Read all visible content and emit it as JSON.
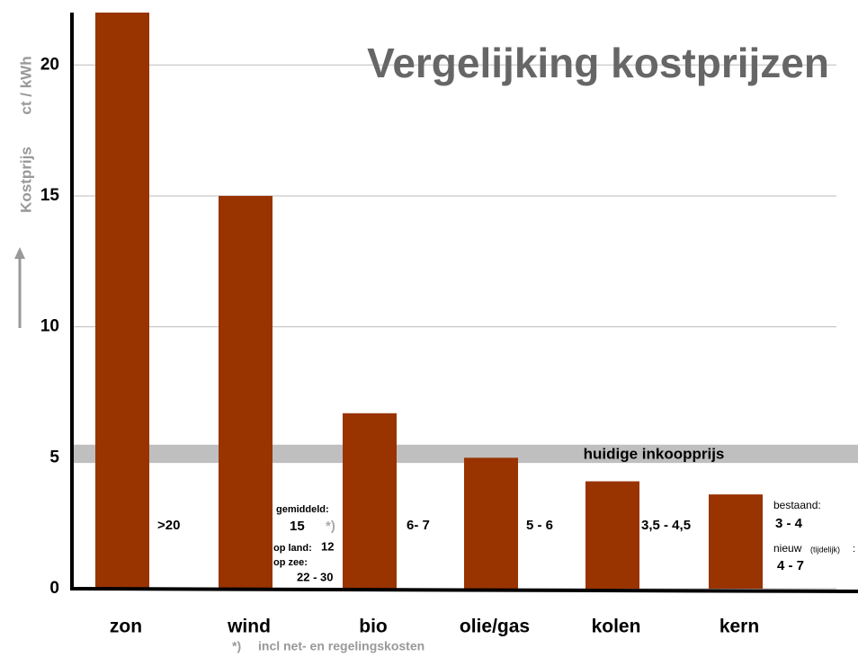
{
  "chart_data": {
    "type": "bar",
    "title": "Vergelijking kostprijzen",
    "y_label": "Kostprijs",
    "y_unit": "ct / kWh",
    "categories": [
      "zon",
      "wind",
      "bio",
      "olie/gas",
      "kolen",
      "kern"
    ],
    "values": [
      22,
      15,
      6.7,
      5,
      4.1,
      3.6
    ],
    "color": "#993300",
    "ylim": [
      0,
      22
    ],
    "yticks": [
      0,
      5,
      10,
      15,
      20
    ],
    "grid": true,
    "band": {
      "label": "huidige inkoopprijs",
      "range": [
        4.8,
        5.5
      ],
      "color": "#bfbfbf"
    },
    "annotations": [
      ">20",
      "gemiddeld:",
      "15",
      "*)",
      "op land:",
      "12",
      "op zee:",
      "22 - 30",
      "6- 7",
      "5 - 6",
      "3,5 - 4,5",
      "bestaand:",
      "3 - 4",
      "nieuw",
      "(tijdelijk)",
      ":",
      "4 - 7"
    ],
    "footnote": {
      "marker": "*)",
      "text": "incl net- en regelingskosten"
    }
  }
}
